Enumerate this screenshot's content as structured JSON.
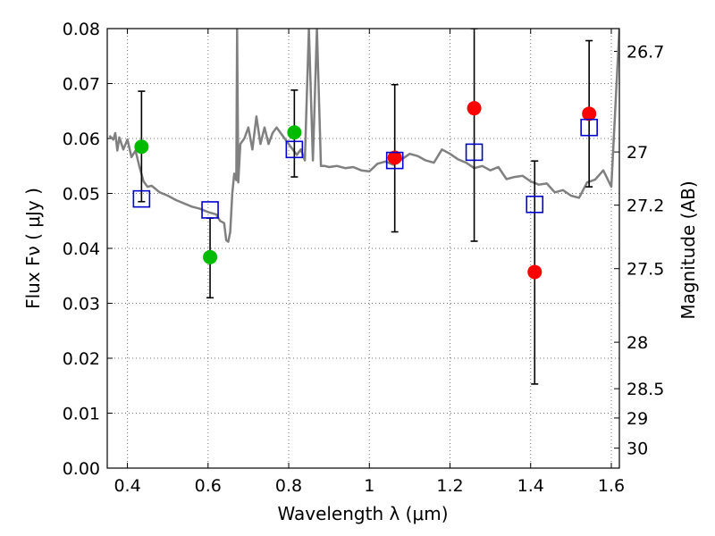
{
  "chart_data": {
    "type": "scatter",
    "title": "",
    "xlabel": "Wavelength  λ (μm)",
    "ylabel": "Flux  Fν  ( μJy )",
    "ylabel_right": "Magnitude (AB)",
    "xlim": [
      0.35,
      1.62
    ],
    "ylim": [
      0,
      0.08
    ],
    "grid": true,
    "x_ticks": [
      "0.4",
      "0.6",
      "0.8",
      "1",
      "1.2",
      "1.4",
      "1.6"
    ],
    "y_ticks": [
      "0.00",
      "0.01",
      "0.02",
      "0.03",
      "0.04",
      "0.05",
      "0.06",
      "0.07",
      "0.08"
    ],
    "mag_ticks": [
      "26.7",
      "27",
      "27.2",
      "27.5",
      "28",
      "28.5",
      "29",
      "30"
    ],
    "colors": {
      "model": "#808080",
      "optical_obs": "#00bb00",
      "nir_obs": "#ff0000",
      "synthetic": "#0000cc",
      "errorbar": "#000000"
    },
    "series": [
      {
        "kind": "model-spectrum",
        "x": [
          0.355,
          0.365,
          0.37,
          0.375,
          0.38,
          0.39,
          0.4,
          0.41,
          0.42,
          0.43,
          0.44,
          0.45,
          0.46,
          0.48,
          0.5,
          0.52,
          0.54,
          0.56,
          0.58,
          0.6,
          0.62,
          0.63,
          0.64,
          0.645,
          0.65,
          0.655,
          0.66,
          0.665,
          0.67,
          0.672,
          0.675,
          0.68,
          0.69,
          0.7,
          0.71,
          0.72,
          0.73,
          0.74,
          0.75,
          0.76,
          0.77,
          0.78,
          0.79,
          0.8,
          0.81,
          0.82,
          0.83,
          0.84,
          0.85,
          0.86,
          0.87,
          0.88,
          0.89,
          0.9,
          0.92,
          0.94,
          0.96,
          0.98,
          1.0,
          1.02,
          1.04,
          1.06,
          1.08,
          1.1,
          1.12,
          1.14,
          1.16,
          1.18,
          1.2,
          1.22,
          1.24,
          1.26,
          1.28,
          1.3,
          1.32,
          1.34,
          1.36,
          1.38,
          1.4,
          1.42,
          1.44,
          1.46,
          1.48,
          1.5,
          1.52,
          1.54,
          1.56,
          1.58,
          1.6,
          1.62
        ],
        "y": [
          0.0605,
          0.0598,
          0.061,
          0.0578,
          0.0602,
          0.058,
          0.0598,
          0.0566,
          0.0578,
          0.0548,
          0.0522,
          0.0512,
          0.0514,
          0.0502,
          0.0496,
          0.0488,
          0.0482,
          0.0476,
          0.0472,
          0.0466,
          0.0462,
          0.045,
          0.0446,
          0.0415,
          0.0412,
          0.043,
          0.05,
          0.0536,
          0.0524,
          0.08,
          0.052,
          0.059,
          0.06,
          0.062,
          0.058,
          0.064,
          0.059,
          0.062,
          0.059,
          0.061,
          0.062,
          0.061,
          0.06,
          0.059,
          0.058,
          0.057,
          0.058,
          0.056,
          0.08,
          0.056,
          0.08,
          0.055,
          0.055,
          0.0548,
          0.055,
          0.0546,
          0.0548,
          0.0542,
          0.054,
          0.0554,
          0.0558,
          0.0552,
          0.0562,
          0.0572,
          0.0568,
          0.056,
          0.0556,
          0.058,
          0.0572,
          0.0562,
          0.0556,
          0.0546,
          0.055,
          0.0542,
          0.0548,
          0.0526,
          0.053,
          0.0532,
          0.0522,
          0.0516,
          0.0518,
          0.0502,
          0.0506,
          0.0496,
          0.0492,
          0.052,
          0.0525,
          0.0542,
          0.0512,
          0.08
        ]
      },
      {
        "kind": "observed-optical",
        "x": [
          0.435,
          0.605,
          0.814
        ],
        "y": [
          0.0585,
          0.0384,
          0.0611
        ],
        "err_low": [
          0.0485,
          0.031,
          0.053
        ],
        "err_high": [
          0.0686,
          0.0455,
          0.0688
        ]
      },
      {
        "kind": "observed-nir",
        "x": [
          1.063,
          1.26,
          1.41,
          1.545
        ],
        "y": [
          0.0565,
          0.0655,
          0.0357,
          0.0645
        ],
        "err_low": [
          0.043,
          0.0413,
          0.0153,
          0.0512
        ],
        "err_high": [
          0.0698,
          0.08,
          0.0559,
          0.0778
        ]
      },
      {
        "kind": "synthetic-model-photometry",
        "x": [
          0.435,
          0.605,
          0.814,
          1.063,
          1.26,
          1.41,
          1.545
        ],
        "y": [
          0.049,
          0.047,
          0.058,
          0.056,
          0.0575,
          0.048,
          0.062
        ]
      }
    ]
  }
}
